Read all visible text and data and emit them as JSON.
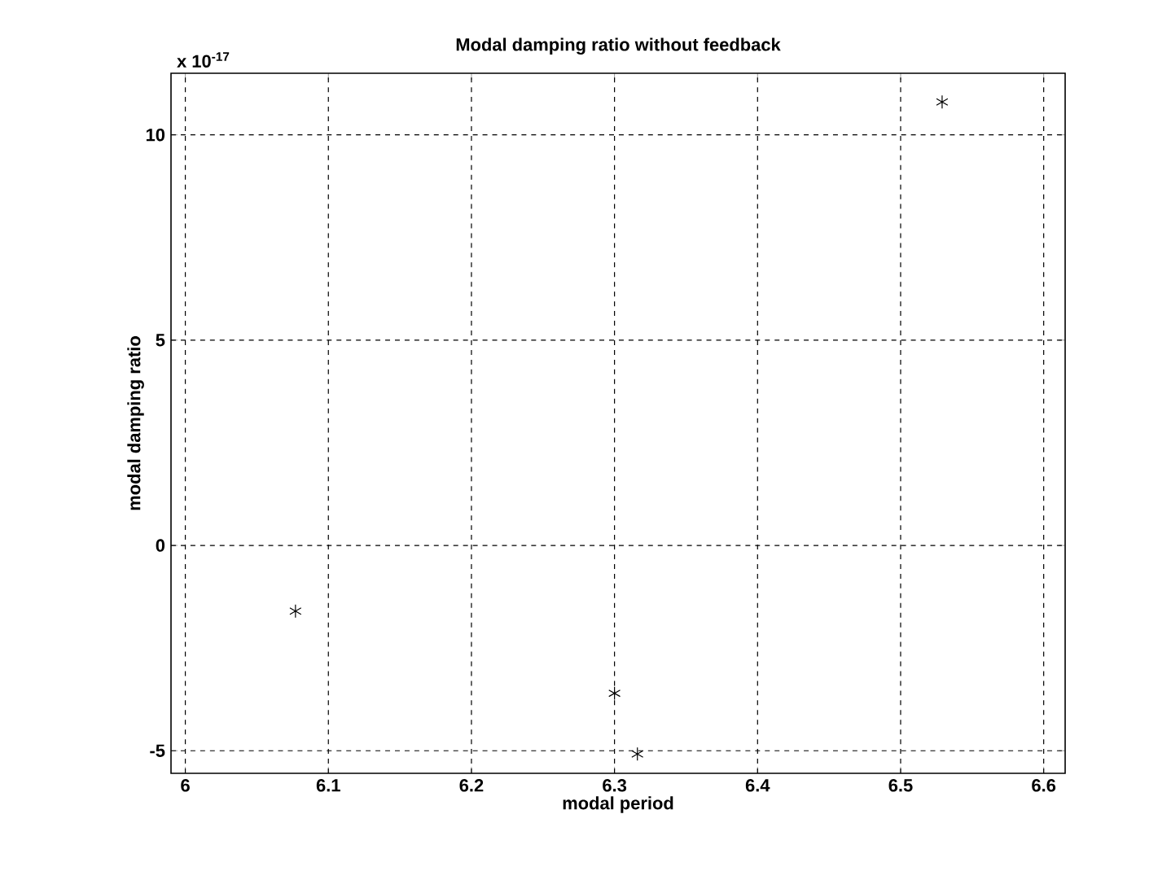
{
  "chart_data": {
    "type": "scatter",
    "title": "Modal damping ratio without feedback",
    "xlabel": "modal period",
    "ylabel": "modal damping ratio",
    "annotations": [
      "x 10$^{-17}$"
    ],
    "x": [
      6.077,
      6.3,
      6.316,
      6.529
    ],
    "series": [
      {
        "color": "#000000",
        "values": [
          -1.6,
          -3.6,
          -5.08,
          10.8
        ]
      }
    ],
    "xlim": [
      5.99,
      6.615
    ],
    "xticks": [
      6,
      6.1,
      6.2,
      6.3,
      6.4,
      6.5,
      6.6
    ],
    "ylim": [
      -5.55,
      11.5
    ],
    "yticks": [
      -5,
      0,
      5,
      10
    ],
    "grid": true,
    "marker": "cross"
  }
}
